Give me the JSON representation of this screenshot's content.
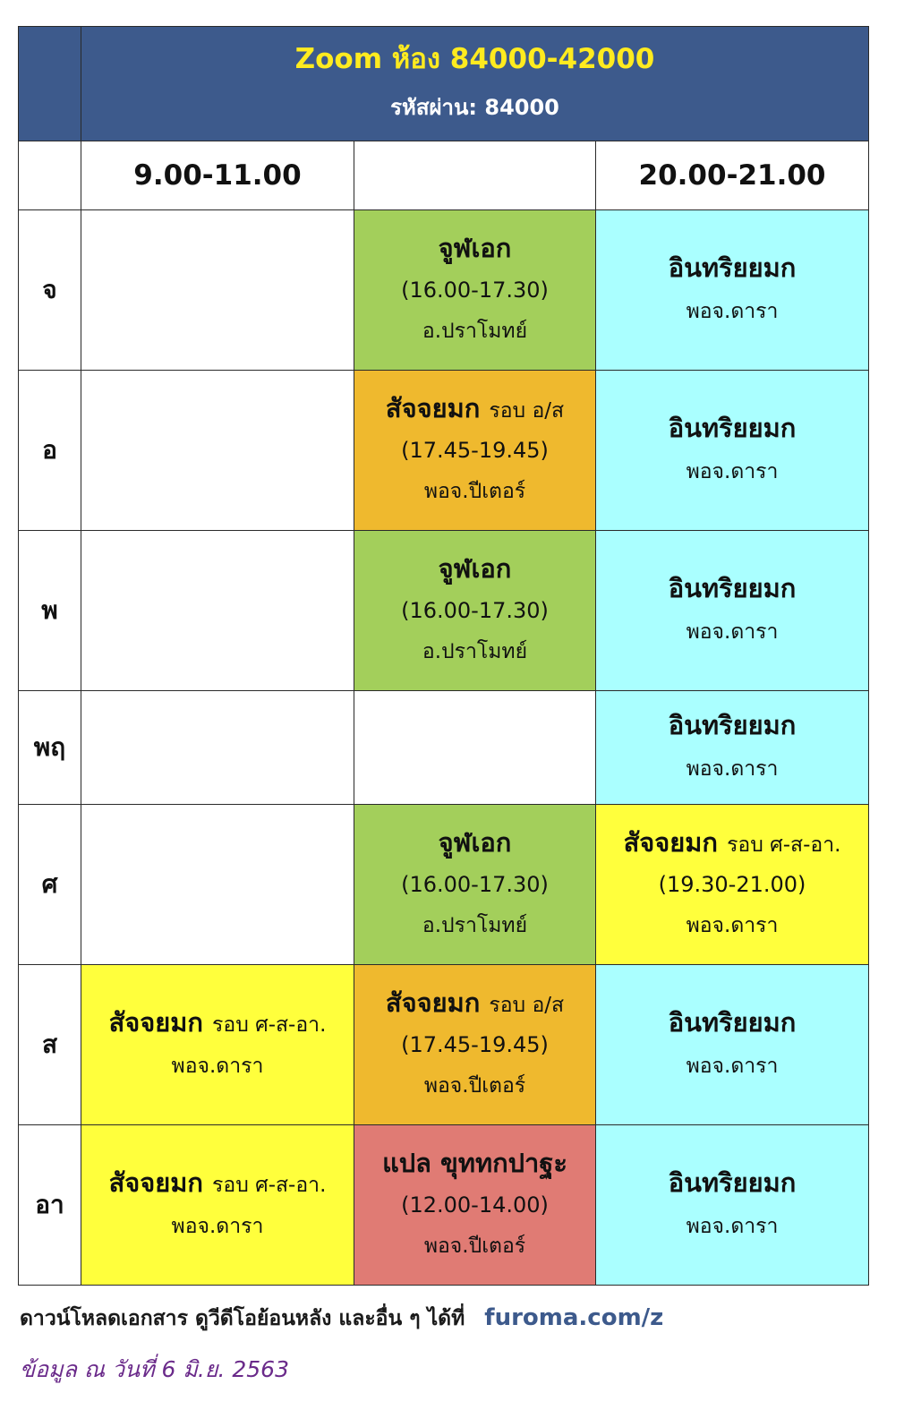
{
  "header": {
    "title": "Zoom ห้อง 84000-42000",
    "password": "รหัสผ่าน: 84000"
  },
  "times": {
    "morning": "9.00-11.00",
    "middle": "",
    "evening": "20.00-21.00"
  },
  "days": [
    "จ",
    "อ",
    "พ",
    "พฤ",
    "ศ",
    "ส",
    "อา"
  ],
  "cells": {
    "mon_mid": {
      "subject": "จูฬเอก",
      "round": "",
      "time": "(16.00-17.30)",
      "teacher": "อ.ปราโมทย์"
    },
    "mon_eve": {
      "subject": "อินทริยยมก",
      "teacher": "พอจ.ดารา"
    },
    "tue_mid": {
      "subject": "สัจจยมก",
      "round": "รอบ อ/ส",
      "time": "(17.45-19.45)",
      "teacher": "พอจ.ปีเตอร์"
    },
    "tue_eve": {
      "subject": "อินทริยยมก",
      "teacher": "พอจ.ดารา"
    },
    "wed_mid": {
      "subject": "จูฬเอก",
      "round": "",
      "time": "(16.00-17.30)",
      "teacher": "อ.ปราโมทย์"
    },
    "wed_eve": {
      "subject": "อินทริยยมก",
      "teacher": "พอจ.ดารา"
    },
    "thu_eve": {
      "subject": "อินทริยยมก",
      "teacher": "พอจ.ดารา"
    },
    "fri_mid": {
      "subject": "จูฬเอก",
      "round": "",
      "time": "(16.00-17.30)",
      "teacher": "อ.ปราโมทย์"
    },
    "fri_eve": {
      "subject": "สัจจยมก",
      "round": "รอบ ศ-ส-อา.",
      "time": "(19.30-21.00)",
      "teacher": "พอจ.ดารา"
    },
    "sat_morn": {
      "subject": "สัจจยมก",
      "round": "รอบ ศ-ส-อา.",
      "teacher": "พอจ.ดารา"
    },
    "sat_mid": {
      "subject": "สัจจยมก",
      "round": "รอบ อ/ส",
      "time": "(17.45-19.45)",
      "teacher": "พอจ.ปีเตอร์"
    },
    "sat_eve": {
      "subject": "อินทริยยมก",
      "teacher": "พอจ.ดารา"
    },
    "sun_morn": {
      "subject": "สัจจยมก",
      "round": "รอบ ศ-ส-อา.",
      "teacher": "พอจ.ดารา"
    },
    "sun_mid": {
      "subject": "แปล ขุททกปาฐะ",
      "round": "",
      "time": "(12.00-14.00)",
      "teacher": "พอจ.ปีเตอร์"
    },
    "sun_eve": {
      "subject": "อินทริยยมก",
      "teacher": "พอจ.ดารา"
    }
  },
  "colors": {
    "header": "#3d5a8c",
    "title": "#ffeb1f",
    "green": "#a3cf5b",
    "orange": "#efb92e",
    "cyan": "#aaffff",
    "yellow": "#ffff3c",
    "red": "#e07b74",
    "date_text": "#6a2a8a"
  },
  "footer": {
    "text": "ดาวน์โหลดเอกสาร ดูวีดีโอย้อนหลัง และอื่น ๆ ได้ที่",
    "link": "furoma.com/z",
    "as_of": "ข้อมูล ณ วันที่ 6 มิ.ย. 2563"
  }
}
